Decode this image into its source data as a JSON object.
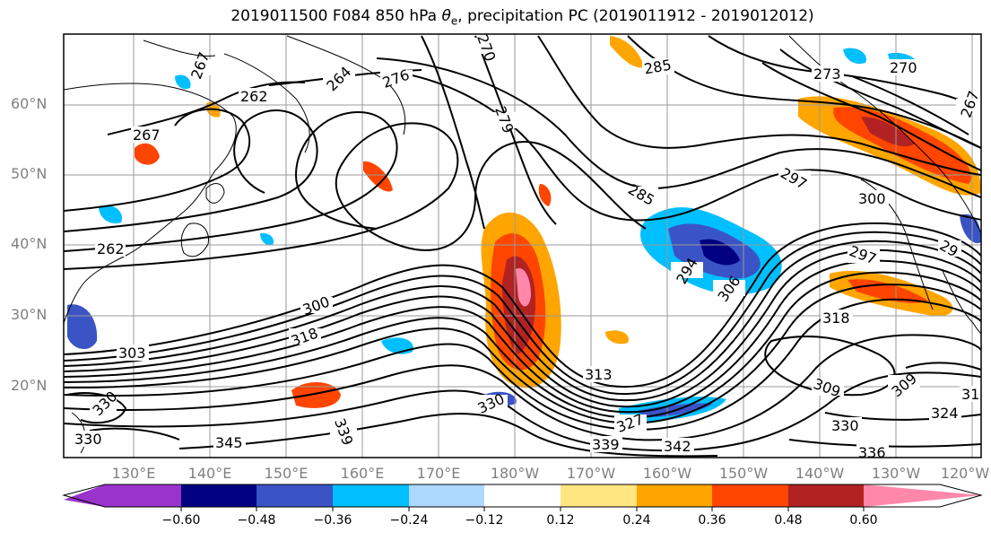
{
  "title": {
    "prefix": "2019011500 F084 850 hPa ",
    "symbol": "θ",
    "symbol_sub": "e",
    "suffix": ", precipitation PC (2019011912 - 2019012012)"
  },
  "map": {
    "lat_labels": [
      "60°N",
      "50°N",
      "40°N",
      "30°N",
      "20°N"
    ],
    "lon_labels": [
      "130°E",
      "140°E",
      "150°E",
      "160°E",
      "170°E",
      "180°W",
      "170°W",
      "160°W",
      "150°W",
      "140°W",
      "130°W",
      "120°W"
    ],
    "contour_labels": [
      "267",
      "262",
      "264",
      "276",
      "279",
      "270",
      "285",
      "273",
      "270",
      "267",
      "267",
      "262",
      "285",
      "297",
      "300",
      "297",
      "294",
      "300",
      "306",
      "318",
      "303",
      "318",
      "313",
      "309",
      "309",
      "330",
      "330",
      "330",
      "327",
      "324",
      "345",
      "339",
      "339",
      "342",
      "336",
      "330",
      "318",
      "29"
    ]
  },
  "colorbar": {
    "labels": [
      "−0.60",
      "−0.48",
      "−0.36",
      "−0.24",
      "−0.12",
      "0.12",
      "0.24",
      "0.36",
      "0.48",
      "0.60"
    ],
    "colors": [
      "#9933cc",
      "#000080",
      "#3a54c6",
      "#00bfff",
      "#add8ff",
      "#ffffff",
      "#ffe680",
      "#ffa500",
      "#ff4500",
      "#b22222",
      "#ff88aa"
    ]
  }
}
